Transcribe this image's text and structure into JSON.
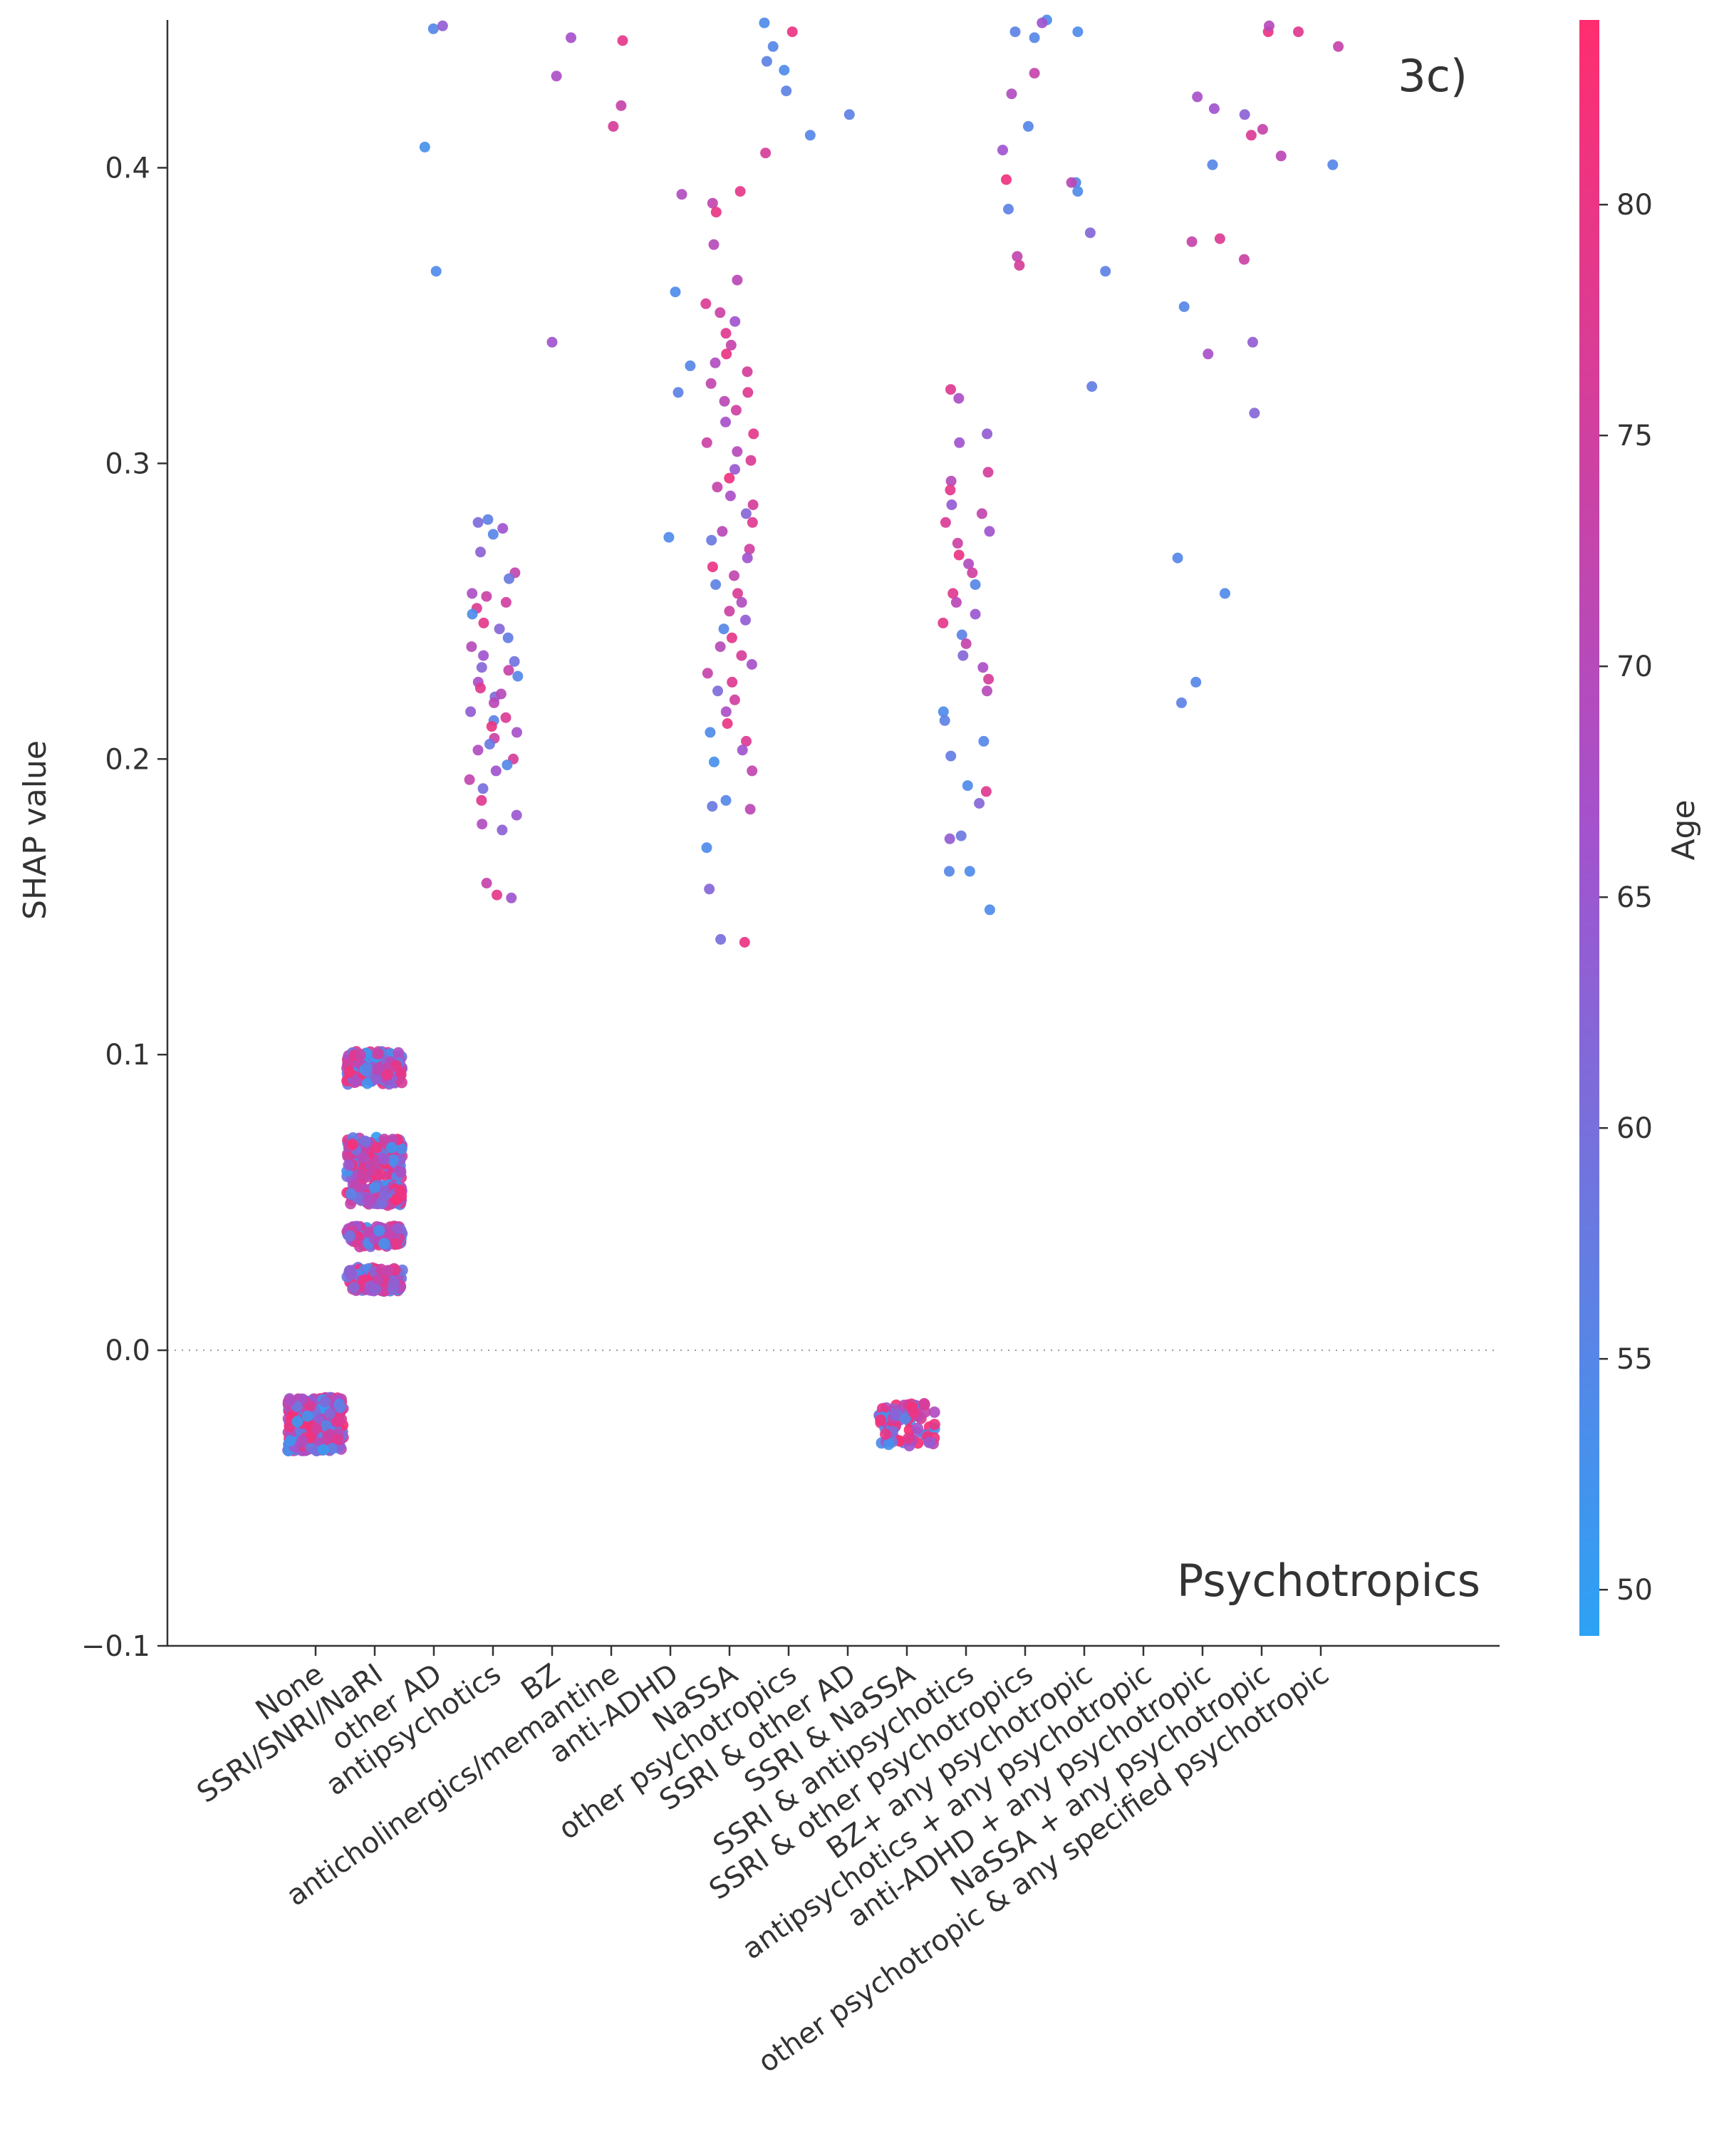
{
  "chart_data": {
    "type": "scatter",
    "panel_label": "3c)",
    "feature_label": "Psychotropics",
    "ylabel": "SHAP value",
    "xlabel": "",
    "ylim": [
      -0.1,
      0.45
    ],
    "yticks": [
      -0.1,
      0.0,
      0.1,
      0.2,
      0.3,
      0.4
    ],
    "ytick_labels": [
      "−0.1",
      "0.0",
      "0.1",
      "0.2",
      "0.3",
      "0.4"
    ],
    "zero_line": true,
    "grid": false,
    "categories": [
      "None",
      "SSRI/SNRI/NaRI",
      "other AD",
      "antipsychotics",
      "BZ",
      "anticholinergics/memantine",
      "anti-ADHD",
      "NaSSA",
      "other psychotropics",
      "SSRI & other AD",
      "SSRI & NaSSA",
      "SSRI & antipsychotics",
      "SSRI & other psychotropics",
      "BZ+ any psychotropic",
      "antipsychotics + any psychotropic",
      "anti-ADHD + any psychotropic",
      "NaSSA + any psychotropic",
      "other psychotropic & any specified psychotropic"
    ],
    "colorbar": {
      "label": "Age",
      "range": [
        49,
        84
      ],
      "ticks": [
        50,
        55,
        60,
        65,
        70,
        75,
        80
      ],
      "color_low": "#2da2f5",
      "color_mid": "#a452cd",
      "color_high": "#ff2d6f"
    },
    "clusters": [
      {
        "category": "None",
        "y_min": -0.034,
        "y_max": -0.016,
        "n": 420
      },
      {
        "category": "SSRI/SNRI/NaRI",
        "bands": [
          {
            "y_min": 0.09,
            "y_max": 0.101,
            "n": 170
          },
          {
            "y_min": 0.058,
            "y_max": 0.072,
            "n": 170
          },
          {
            "y_min": 0.049,
            "y_max": 0.056,
            "n": 110
          },
          {
            "y_min": 0.035,
            "y_max": 0.042,
            "n": 110
          },
          {
            "y_min": 0.02,
            "y_max": 0.028,
            "n": 130
          }
        ]
      },
      {
        "category": "SSRI & NaSSA",
        "y_min": -0.033,
        "y_max": -0.018,
        "n": 80
      }
    ],
    "points": [
      {
        "cat": 2,
        "y": 0.447,
        "age": 55
      },
      {
        "cat": 2,
        "y": 0.448,
        "age": 64
      },
      {
        "cat": 2,
        "y": 0.407,
        "age": 53
      },
      {
        "cat": 2,
        "y": 0.365,
        "age": 54
      },
      {
        "cat": 3,
        "y": 0.281,
        "age": 56
      },
      {
        "cat": 3,
        "y": 0.28,
        "age": 61
      },
      {
        "cat": 3,
        "y": 0.278,
        "age": 66
      },
      {
        "cat": 3,
        "y": 0.276,
        "age": 55
      },
      {
        "cat": 3,
        "y": 0.27,
        "age": 63
      },
      {
        "cat": 3,
        "y": 0.263,
        "age": 72
      },
      {
        "cat": 3,
        "y": 0.261,
        "age": 58
      },
      {
        "cat": 3,
        "y": 0.256,
        "age": 68
      },
      {
        "cat": 3,
        "y": 0.253,
        "age": 75
      },
      {
        "cat": 3,
        "y": 0.251,
        "age": 77
      },
      {
        "cat": 3,
        "y": 0.249,
        "age": 54
      },
      {
        "cat": 3,
        "y": 0.246,
        "age": 79
      },
      {
        "cat": 3,
        "y": 0.244,
        "age": 62
      },
      {
        "cat": 3,
        "y": 0.241,
        "age": 57
      },
      {
        "cat": 3,
        "y": 0.238,
        "age": 70
      },
      {
        "cat": 3,
        "y": 0.235,
        "age": 66
      },
      {
        "cat": 3,
        "y": 0.233,
        "age": 59
      },
      {
        "cat": 3,
        "y": 0.23,
        "age": 73
      },
      {
        "cat": 3,
        "y": 0.228,
        "age": 55
      },
      {
        "cat": 3,
        "y": 0.226,
        "age": 68
      },
      {
        "cat": 3,
        "y": 0.224,
        "age": 78
      },
      {
        "cat": 3,
        "y": 0.221,
        "age": 61
      },
      {
        "cat": 3,
        "y": 0.219,
        "age": 71
      },
      {
        "cat": 3,
        "y": 0.216,
        "age": 64
      },
      {
        "cat": 3,
        "y": 0.213,
        "age": 56
      },
      {
        "cat": 3,
        "y": 0.211,
        "age": 80
      },
      {
        "cat": 3,
        "y": 0.209,
        "age": 67
      },
      {
        "cat": 3,
        "y": 0.207,
        "age": 74
      },
      {
        "cat": 3,
        "y": 0.205,
        "age": 58
      },
      {
        "cat": 3,
        "y": 0.203,
        "age": 69
      },
      {
        "cat": 3,
        "y": 0.2,
        "age": 76
      },
      {
        "cat": 3,
        "y": 0.198,
        "age": 55
      },
      {
        "cat": 3,
        "y": 0.196,
        "age": 66
      },
      {
        "cat": 3,
        "y": 0.193,
        "age": 72
      },
      {
        "cat": 3,
        "y": 0.19,
        "age": 60
      },
      {
        "cat": 3,
        "y": 0.186,
        "age": 78
      },
      {
        "cat": 3,
        "y": 0.181,
        "age": 65
      },
      {
        "cat": 3,
        "y": 0.178,
        "age": 69
      },
      {
        "cat": 3,
        "y": 0.176,
        "age": 63
      },
      {
        "cat": 3,
        "y": 0.158,
        "age": 73
      },
      {
        "cat": 3,
        "y": 0.154,
        "age": 79
      },
      {
        "cat": 3,
        "y": 0.153,
        "age": 66
      },
      {
        "cat": 3,
        "y": 0.222,
        "age": 70
      },
      {
        "cat": 3,
        "y": 0.231,
        "age": 62
      },
      {
        "cat": 3,
        "y": 0.255,
        "age": 74
      },
      {
        "cat": 3,
        "y": 0.214,
        "age": 77
      },
      {
        "cat": 4,
        "y": 0.444,
        "age": 67
      },
      {
        "cat": 4,
        "y": 0.431,
        "age": 68
      },
      {
        "cat": 4,
        "y": 0.341,
        "age": 66
      },
      {
        "cat": 5,
        "y": 0.443,
        "age": 79
      },
      {
        "cat": 5,
        "y": 0.421,
        "age": 73
      },
      {
        "cat": 5,
        "y": 0.414,
        "age": 76
      },
      {
        "cat": 6,
        "y": 0.391,
        "age": 69
      },
      {
        "cat": 6,
        "y": 0.358,
        "age": 54
      },
      {
        "cat": 6,
        "y": 0.333,
        "age": 55
      },
      {
        "cat": 6,
        "y": 0.324,
        "age": 56
      },
      {
        "cat": 6,
        "y": 0.275,
        "age": 54
      },
      {
        "cat": 7,
        "y": 0.392,
        "age": 79
      },
      {
        "cat": 7,
        "y": 0.388,
        "age": 72
      },
      {
        "cat": 7,
        "y": 0.385,
        "age": 80
      },
      {
        "cat": 7,
        "y": 0.374,
        "age": 70
      },
      {
        "cat": 7,
        "y": 0.362,
        "age": 71
      },
      {
        "cat": 7,
        "y": 0.354,
        "age": 77
      },
      {
        "cat": 7,
        "y": 0.351,
        "age": 74
      },
      {
        "cat": 7,
        "y": 0.348,
        "age": 66
      },
      {
        "cat": 7,
        "y": 0.344,
        "age": 78
      },
      {
        "cat": 7,
        "y": 0.34,
        "age": 73
      },
      {
        "cat": 7,
        "y": 0.337,
        "age": 80
      },
      {
        "cat": 7,
        "y": 0.334,
        "age": 69
      },
      {
        "cat": 7,
        "y": 0.331,
        "age": 76
      },
      {
        "cat": 7,
        "y": 0.327,
        "age": 72
      },
      {
        "cat": 7,
        "y": 0.324,
        "age": 78
      },
      {
        "cat": 7,
        "y": 0.321,
        "age": 71
      },
      {
        "cat": 7,
        "y": 0.318,
        "age": 75
      },
      {
        "cat": 7,
        "y": 0.314,
        "age": 67
      },
      {
        "cat": 7,
        "y": 0.31,
        "age": 79
      },
      {
        "cat": 7,
        "y": 0.307,
        "age": 74
      },
      {
        "cat": 7,
        "y": 0.304,
        "age": 70
      },
      {
        "cat": 7,
        "y": 0.301,
        "age": 77
      },
      {
        "cat": 7,
        "y": 0.298,
        "age": 65
      },
      {
        "cat": 7,
        "y": 0.295,
        "age": 81
      },
      {
        "cat": 7,
        "y": 0.292,
        "age": 73
      },
      {
        "cat": 7,
        "y": 0.289,
        "age": 68
      },
      {
        "cat": 7,
        "y": 0.286,
        "age": 76
      },
      {
        "cat": 7,
        "y": 0.283,
        "age": 62
      },
      {
        "cat": 7,
        "y": 0.28,
        "age": 78
      },
      {
        "cat": 7,
        "y": 0.277,
        "age": 71
      },
      {
        "cat": 7,
        "y": 0.274,
        "age": 58
      },
      {
        "cat": 7,
        "y": 0.271,
        "age": 75
      },
      {
        "cat": 7,
        "y": 0.268,
        "age": 66
      },
      {
        "cat": 7,
        "y": 0.265,
        "age": 80
      },
      {
        "cat": 7,
        "y": 0.262,
        "age": 72
      },
      {
        "cat": 7,
        "y": 0.259,
        "age": 56
      },
      {
        "cat": 7,
        "y": 0.256,
        "age": 77
      },
      {
        "cat": 7,
        "y": 0.253,
        "age": 69
      },
      {
        "cat": 7,
        "y": 0.25,
        "age": 74
      },
      {
        "cat": 7,
        "y": 0.247,
        "age": 64
      },
      {
        "cat": 7,
        "y": 0.244,
        "age": 55
      },
      {
        "cat": 7,
        "y": 0.241,
        "age": 79
      },
      {
        "cat": 7,
        "y": 0.238,
        "age": 70
      },
      {
        "cat": 7,
        "y": 0.235,
        "age": 76
      },
      {
        "cat": 7,
        "y": 0.232,
        "age": 67
      },
      {
        "cat": 7,
        "y": 0.229,
        "age": 73
      },
      {
        "cat": 7,
        "y": 0.226,
        "age": 78
      },
      {
        "cat": 7,
        "y": 0.223,
        "age": 61
      },
      {
        "cat": 7,
        "y": 0.22,
        "age": 75
      },
      {
        "cat": 7,
        "y": 0.216,
        "age": 68
      },
      {
        "cat": 7,
        "y": 0.212,
        "age": 80
      },
      {
        "cat": 7,
        "y": 0.209,
        "age": 54
      },
      {
        "cat": 7,
        "y": 0.206,
        "age": 77
      },
      {
        "cat": 7,
        "y": 0.203,
        "age": 66
      },
      {
        "cat": 7,
        "y": 0.199,
        "age": 53
      },
      {
        "cat": 7,
        "y": 0.196,
        "age": 72
      },
      {
        "cat": 7,
        "y": 0.186,
        "age": 55
      },
      {
        "cat": 7,
        "y": 0.184,
        "age": 58
      },
      {
        "cat": 7,
        "y": 0.183,
        "age": 71
      },
      {
        "cat": 7,
        "y": 0.17,
        "age": 54
      },
      {
        "cat": 7,
        "y": 0.156,
        "age": 62
      },
      {
        "cat": 7,
        "y": 0.139,
        "age": 60
      },
      {
        "cat": 7,
        "y": 0.138,
        "age": 80
      },
      {
        "cat": 8,
        "y": 0.449,
        "age": 54
      },
      {
        "cat": 8,
        "y": 0.446,
        "age": 80
      },
      {
        "cat": 8,
        "y": 0.441,
        "age": 55
      },
      {
        "cat": 8,
        "y": 0.436,
        "age": 56
      },
      {
        "cat": 8,
        "y": 0.433,
        "age": 54
      },
      {
        "cat": 8,
        "y": 0.426,
        "age": 56
      },
      {
        "cat": 8,
        "y": 0.411,
        "age": 55
      },
      {
        "cat": 8,
        "y": 0.405,
        "age": 76
      },
      {
        "cat": 9,
        "y": 0.418,
        "age": 56
      },
      {
        "cat": 11,
        "y": 0.325,
        "age": 78
      },
      {
        "cat": 11,
        "y": 0.322,
        "age": 68
      },
      {
        "cat": 11,
        "y": 0.31,
        "age": 64
      },
      {
        "cat": 11,
        "y": 0.307,
        "age": 66
      },
      {
        "cat": 11,
        "y": 0.297,
        "age": 76
      },
      {
        "cat": 11,
        "y": 0.294,
        "age": 70
      },
      {
        "cat": 11,
        "y": 0.291,
        "age": 79
      },
      {
        "cat": 11,
        "y": 0.286,
        "age": 64
      },
      {
        "cat": 11,
        "y": 0.283,
        "age": 72
      },
      {
        "cat": 11,
        "y": 0.28,
        "age": 77
      },
      {
        "cat": 11,
        "y": 0.277,
        "age": 66
      },
      {
        "cat": 11,
        "y": 0.273,
        "age": 74
      },
      {
        "cat": 11,
        "y": 0.269,
        "age": 80
      },
      {
        "cat": 11,
        "y": 0.266,
        "age": 69
      },
      {
        "cat": 11,
        "y": 0.263,
        "age": 75
      },
      {
        "cat": 11,
        "y": 0.259,
        "age": 55
      },
      {
        "cat": 11,
        "y": 0.256,
        "age": 78
      },
      {
        "cat": 11,
        "y": 0.253,
        "age": 71
      },
      {
        "cat": 11,
        "y": 0.249,
        "age": 65
      },
      {
        "cat": 11,
        "y": 0.246,
        "age": 79
      },
      {
        "cat": 11,
        "y": 0.242,
        "age": 56
      },
      {
        "cat": 11,
        "y": 0.239,
        "age": 73
      },
      {
        "cat": 11,
        "y": 0.235,
        "age": 62
      },
      {
        "cat": 11,
        "y": 0.231,
        "age": 68
      },
      {
        "cat": 11,
        "y": 0.227,
        "age": 76
      },
      {
        "cat": 11,
        "y": 0.223,
        "age": 70
      },
      {
        "cat": 11,
        "y": 0.216,
        "age": 54
      },
      {
        "cat": 11,
        "y": 0.213,
        "age": 56
      },
      {
        "cat": 11,
        "y": 0.206,
        "age": 55
      },
      {
        "cat": 11,
        "y": 0.201,
        "age": 57
      },
      {
        "cat": 11,
        "y": 0.191,
        "age": 54
      },
      {
        "cat": 11,
        "y": 0.189,
        "age": 78
      },
      {
        "cat": 11,
        "y": 0.185,
        "age": 62
      },
      {
        "cat": 11,
        "y": 0.174,
        "age": 58
      },
      {
        "cat": 11,
        "y": 0.173,
        "age": 64
      },
      {
        "cat": 11,
        "y": 0.162,
        "age": 54
      },
      {
        "cat": 11,
        "y": 0.162,
        "age": 55
      },
      {
        "cat": 11,
        "y": 0.149,
        "age": 54
      },
      {
        "cat": 12,
        "y": 0.45,
        "age": 54
      },
      {
        "cat": 12,
        "y": 0.446,
        "age": 56
      },
      {
        "cat": 12,
        "y": 0.444,
        "age": 55
      },
      {
        "cat": 12,
        "y": 0.432,
        "age": 73
      },
      {
        "cat": 12,
        "y": 0.425,
        "age": 69
      },
      {
        "cat": 12,
        "y": 0.414,
        "age": 55
      },
      {
        "cat": 12,
        "y": 0.406,
        "age": 66
      },
      {
        "cat": 12,
        "y": 0.396,
        "age": 81
      },
      {
        "cat": 12,
        "y": 0.386,
        "age": 56
      },
      {
        "cat": 12,
        "y": 0.37,
        "age": 72
      },
      {
        "cat": 12,
        "y": 0.367,
        "age": 76
      },
      {
        "cat": 12,
        "y": 0.449,
        "age": 66
      },
      {
        "cat": 13,
        "y": 0.446,
        "age": 54
      },
      {
        "cat": 13,
        "y": 0.395,
        "age": 55
      },
      {
        "cat": 13,
        "y": 0.395,
        "age": 71
      },
      {
        "cat": 13,
        "y": 0.392,
        "age": 54
      },
      {
        "cat": 13,
        "y": 0.378,
        "age": 62
      },
      {
        "cat": 13,
        "y": 0.365,
        "age": 56
      },
      {
        "cat": 13,
        "y": 0.326,
        "age": 57
      },
      {
        "cat": 15,
        "y": 0.424,
        "age": 67
      },
      {
        "cat": 15,
        "y": 0.42,
        "age": 66
      },
      {
        "cat": 15,
        "y": 0.401,
        "age": 55
      },
      {
        "cat": 15,
        "y": 0.376,
        "age": 77
      },
      {
        "cat": 15,
        "y": 0.375,
        "age": 73
      },
      {
        "cat": 15,
        "y": 0.353,
        "age": 55
      },
      {
        "cat": 15,
        "y": 0.337,
        "age": 67
      },
      {
        "cat": 15,
        "y": 0.268,
        "age": 55
      },
      {
        "cat": 15,
        "y": 0.256,
        "age": 54
      },
      {
        "cat": 15,
        "y": 0.226,
        "age": 55
      },
      {
        "cat": 15,
        "y": 0.219,
        "age": 56
      },
      {
        "cat": 16,
        "y": 0.446,
        "age": 80
      },
      {
        "cat": 16,
        "y": 0.418,
        "age": 63
      },
      {
        "cat": 16,
        "y": 0.413,
        "age": 73
      },
      {
        "cat": 16,
        "y": 0.411,
        "age": 77
      },
      {
        "cat": 16,
        "y": 0.404,
        "age": 71
      },
      {
        "cat": 16,
        "y": 0.369,
        "age": 74
      },
      {
        "cat": 16,
        "y": 0.341,
        "age": 64
      },
      {
        "cat": 16,
        "y": 0.317,
        "age": 62
      },
      {
        "cat": 16,
        "y": 0.448,
        "age": 70
      },
      {
        "cat": 17,
        "y": 0.446,
        "age": 78
      },
      {
        "cat": 17,
        "y": 0.441,
        "age": 73
      },
      {
        "cat": 17,
        "y": 0.401,
        "age": 55
      }
    ]
  }
}
